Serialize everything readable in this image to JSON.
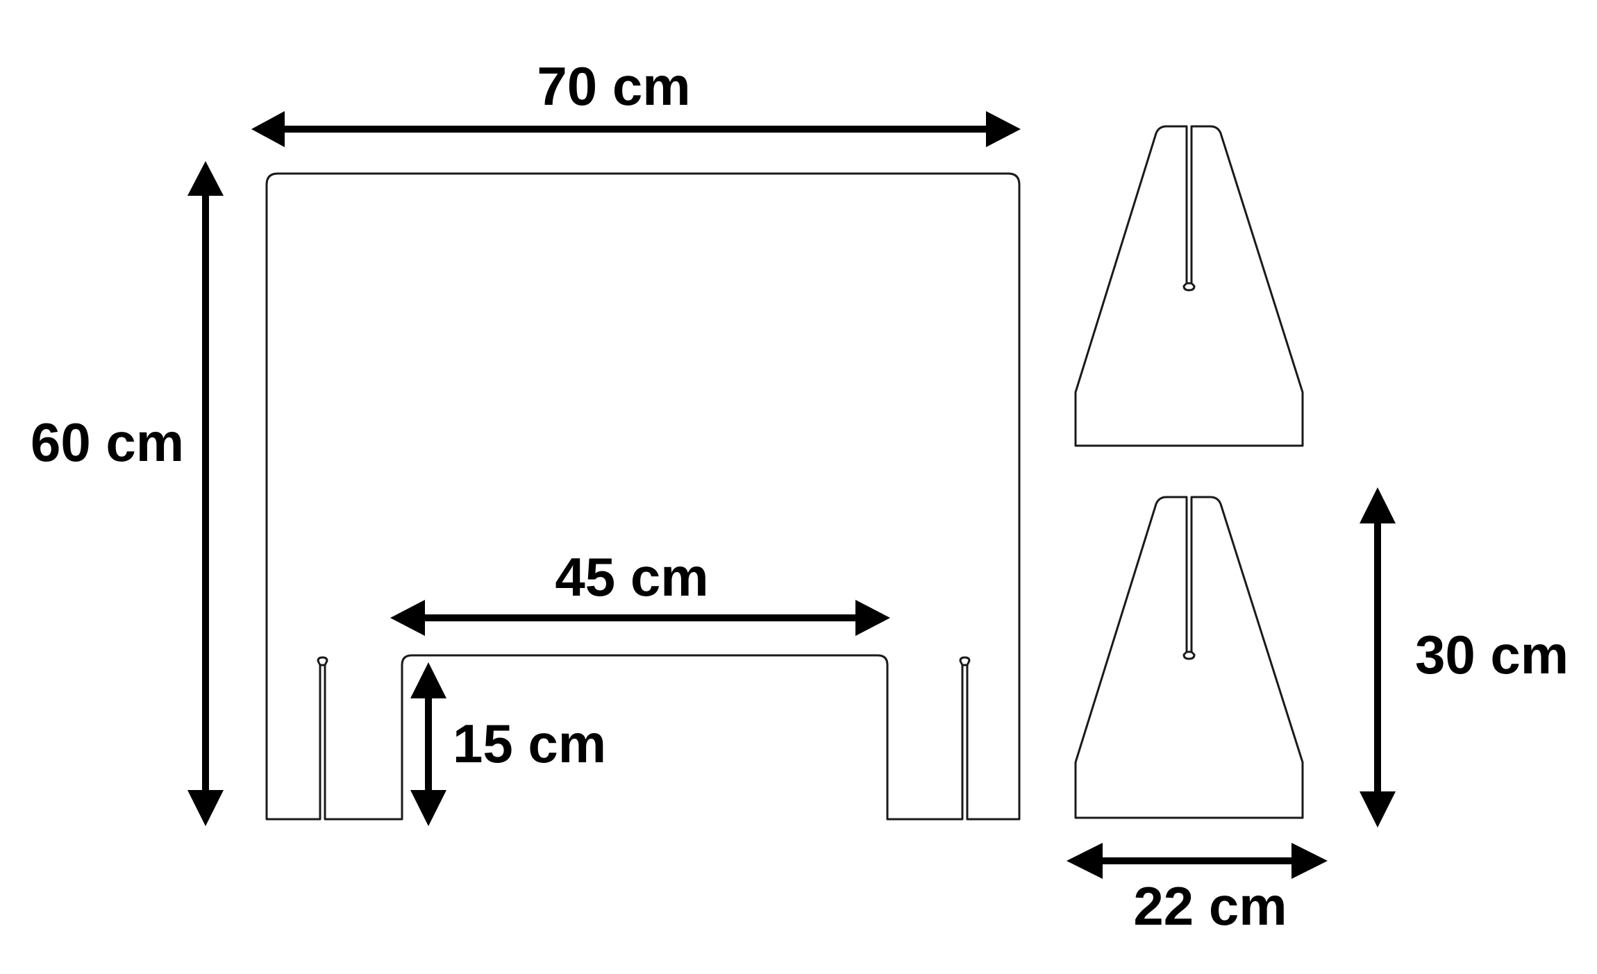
{
  "dimensions": {
    "panel_width": "70 cm",
    "panel_height": "60 cm",
    "cutout_width": "45 cm",
    "cutout_height": "15 cm",
    "foot_height": "30 cm",
    "foot_width": "22 cm"
  },
  "colors": {
    "outline": "#1a1a1a",
    "dimension": "#000000",
    "background": "#ffffff"
  }
}
